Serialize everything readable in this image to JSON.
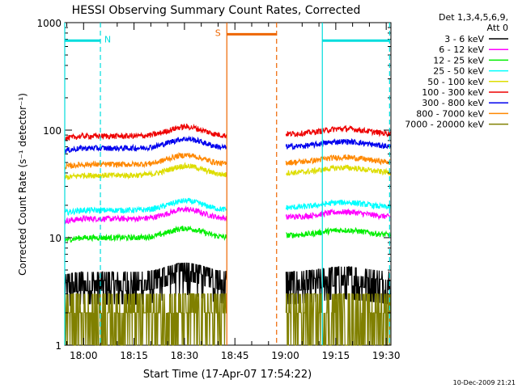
{
  "chart_data": {
    "type": "line",
    "title": "HESSI Observing Summary Count Rates, Corrected",
    "xlabel": "Start Time (17-Apr-07 17:54:22)",
    "ylabel": "Corrected Count Rate (s⁻¹ detector⁻¹)",
    "xlim_minutes_after_start": [
      0,
      97
    ],
    "ylim": [
      1,
      1000
    ],
    "yscale": "log",
    "x_ticks": [
      {
        "label": "18:00",
        "at": 5.6
      },
      {
        "label": "18:15",
        "at": 20.6
      },
      {
        "label": "18:30",
        "at": 35.6
      },
      {
        "label": "18:45",
        "at": 50.6
      },
      {
        "label": "19:00",
        "at": 65.6
      },
      {
        "label": "19:15",
        "at": 80.6
      },
      {
        "label": "19:30",
        "at": 95.6
      }
    ],
    "y_ticks": [
      {
        "label": "1",
        "at": 1
      },
      {
        "label": "10",
        "at": 10
      },
      {
        "label": "100",
        "at": 100
      },
      {
        "label": "1000",
        "at": 1000
      }
    ],
    "legend_header": [
      "Det 1,3,4,5,6,9,",
      "Att 0"
    ],
    "legend_position": "right",
    "segments": [
      [
        0,
        48.2
      ],
      [
        65.8,
        96.8
      ]
    ],
    "series": [
      {
        "name": "3 - 6 keV",
        "color": "#000000",
        "base_a": 4.2,
        "base_b": 4.0
      },
      {
        "name": "6 - 12 keV",
        "color": "#ff00ff",
        "base_a": 15.0,
        "base_b": 15.5
      },
      {
        "name": "12 - 25 keV",
        "color": "#00ee00",
        "base_a": 10.0,
        "base_b": 10.5
      },
      {
        "name": "25 - 50 keV",
        "color": "#00ffff",
        "base_a": 18.0,
        "base_b": 19.0
      },
      {
        "name": "50 - 100 keV",
        "color": "#dddd00",
        "base_a": 38.0,
        "base_b": 40.0
      },
      {
        "name": "100 - 300 keV",
        "color": "#ee0000",
        "base_a": 88.0,
        "base_b": 92.0
      },
      {
        "name": "300 - 800 keV",
        "color": "#0000ee",
        "base_a": 68.0,
        "base_b": 70.0
      },
      {
        "name": "800 - 7000 keV",
        "color": "#ff8800",
        "base_a": 48.0,
        "base_b": 50.0
      },
      {
        "name": "7000 - 20000 keV",
        "color": "#808000",
        "base_a": 1.8,
        "base_b": 2.0
      }
    ],
    "flags": [
      {
        "label": "N",
        "color": "#00dddd",
        "y": 680,
        "x_start": 0,
        "x_end": 10.6,
        "x_vline_solid": 0,
        "x_vline_dashed": 10.6
      },
      {
        "label": "S",
        "color": "#ee6600",
        "y": 780,
        "x_start": 48.2,
        "x_end": 63.0,
        "x_vline_solid": 48.2,
        "x_vline_dashed": 63.0
      },
      {
        "label": "",
        "color": "#00dddd",
        "y": 680,
        "x_start": 76.6,
        "x_end": 96.6,
        "x_vline_solid": 76.6,
        "x_vline_dashed": 96.6
      }
    ]
  },
  "footer": {
    "timestamp": "10-Dec-2009 21:21"
  }
}
